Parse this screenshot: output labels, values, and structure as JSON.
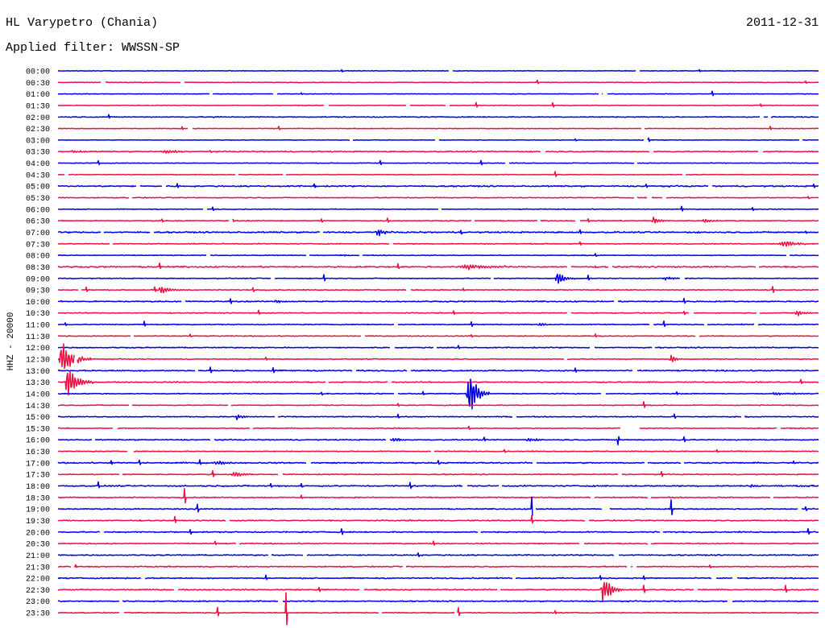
{
  "chart_data": {
    "type": "line",
    "title": "HL Varypetro (Chania)",
    "date": "2011-12-31",
    "subtitle": "Applied filter: WWSSN-SP",
    "ylabel": "HHZ - 20000",
    "row_minutes": 30,
    "colors": [
      "#0000ee",
      "#ee1144"
    ],
    "rows": [
      {
        "label": "00:00",
        "noise": 700,
        "events": [],
        "spikes": [
          {
            "t": 11.2,
            "amp": 2500
          },
          {
            "t": 25.3,
            "amp": 2000
          }
        ]
      },
      {
        "label": "00:30",
        "noise": 700,
        "events": [],
        "spikes": [
          {
            "t": 4.9,
            "amp": 3500
          },
          {
            "t": 18.9,
            "amp": 3500
          },
          {
            "t": 29.5,
            "amp": 2500
          }
        ]
      },
      {
        "label": "01:00",
        "noise": 700,
        "events": [],
        "spikes": [
          {
            "t": 9.6,
            "amp": 2000
          },
          {
            "t": 25.8,
            "amp": 4500
          }
        ]
      },
      {
        "label": "01:30",
        "noise": 700,
        "events": [],
        "spikes": [
          {
            "t": 16.5,
            "amp": 4500
          },
          {
            "t": 19.5,
            "amp": 4500
          },
          {
            "t": 27.7,
            "amp": 2500
          }
        ]
      },
      {
        "label": "02:00",
        "noise": 1100,
        "events": [
          {
            "t": 6.0,
            "dur": 1.3,
            "amp": 1500
          }
        ],
        "spikes": [
          {
            "t": 2.0,
            "amp": 3500
          }
        ]
      },
      {
        "label": "02:30",
        "noise": 800,
        "events": [],
        "spikes": [
          {
            "t": 4.9,
            "amp": 3000
          },
          {
            "t": 8.7,
            "amp": 3500
          },
          {
            "t": 28.1,
            "amp": 3500
          }
        ]
      },
      {
        "label": "03:00",
        "noise": 700,
        "events": [],
        "spikes": [
          {
            "t": 20.4,
            "amp": 2000
          },
          {
            "t": 23.3,
            "amp": 3500
          }
        ]
      },
      {
        "label": "03:30",
        "noise": 1200,
        "events": [
          {
            "t": 0.4,
            "dur": 1.5,
            "amp": 2000
          },
          {
            "t": 4.1,
            "dur": 1.1,
            "amp": 4500
          }
        ],
        "spikes": [
          {
            "t": 6.0,
            "amp": 2500
          }
        ]
      },
      {
        "label": "04:00",
        "noise": 800,
        "events": [],
        "spikes": [
          {
            "t": 1.6,
            "amp": 4000
          },
          {
            "t": 12.7,
            "amp": 4000
          },
          {
            "t": 16.7,
            "amp": 4500
          }
        ]
      },
      {
        "label": "04:30",
        "noise": 700,
        "events": [],
        "spikes": [
          {
            "t": 19.6,
            "amp": 5500
          }
        ]
      },
      {
        "label": "05:00",
        "noise": 1500,
        "events": [],
        "spikes": [
          {
            "t": 4.7,
            "amp": 3500
          },
          {
            "t": 10.1,
            "amp": 3500
          },
          {
            "t": 23.2,
            "amp": 3500
          },
          {
            "t": 29.8,
            "amp": 3000
          }
        ]
      },
      {
        "label": "05:30",
        "noise": 1000,
        "events": [],
        "spikes": [
          {
            "t": 29.6,
            "amp": 2500
          }
        ]
      },
      {
        "label": "06:00",
        "noise": 900,
        "events": [],
        "spikes": [
          {
            "t": 6.1,
            "amp": 3500
          },
          {
            "t": 24.6,
            "amp": 4500
          },
          {
            "t": 27.4,
            "amp": 3000
          }
        ]
      },
      {
        "label": "06:30",
        "noise": 1000,
        "events": [
          {
            "t": 23.4,
            "dur": 0.7,
            "amp": 7000
          },
          {
            "t": 25.4,
            "dur": 0.8,
            "amp": 4500
          }
        ],
        "spikes": [
          {
            "t": 4.1,
            "amp": 3000
          },
          {
            "t": 6.9,
            "amp": 3000
          },
          {
            "t": 10.4,
            "amp": 3000
          },
          {
            "t": 13.0,
            "amp": 4000
          },
          {
            "t": 20.9,
            "amp": 3000
          }
        ]
      },
      {
        "label": "07:00",
        "noise": 1600,
        "events": [
          {
            "t": 12.5,
            "dur": 0.8,
            "amp": 8000
          }
        ],
        "spikes": [
          {
            "t": 15.9,
            "amp": 4000
          },
          {
            "t": 20.6,
            "amp": 4000
          },
          {
            "t": 29.5,
            "amp": 3000
          }
        ]
      },
      {
        "label": "07:30",
        "noise": 1000,
        "events": [
          {
            "t": 28.4,
            "dur": 1.6,
            "amp": 5500
          }
        ],
        "spikes": [
          {
            "t": 13.1,
            "amp": 3500
          },
          {
            "t": 20.6,
            "amp": 3000
          }
        ]
      },
      {
        "label": "08:00",
        "noise": 900,
        "events": [
          {
            "t": 11.1,
            "dur": 0.4,
            "amp": 2500
          }
        ],
        "spikes": [
          {
            "t": 21.2,
            "amp": 3000
          }
        ]
      },
      {
        "label": "08:30",
        "noise": 1600,
        "events": [
          {
            "t": 15.8,
            "dur": 2.7,
            "amp": 5000
          }
        ],
        "spikes": [
          {
            "t": 4.0,
            "amp": 6000
          },
          {
            "t": 13.4,
            "amp": 6000
          }
        ]
      },
      {
        "label": "09:00",
        "noise": 1000,
        "events": [
          {
            "t": 19.6,
            "dur": 0.8,
            "amp": 14000
          },
          {
            "t": 23.8,
            "dur": 1.3,
            "amp": 3500
          }
        ],
        "spikes": [
          {
            "t": 10.5,
            "amp": 6500
          },
          {
            "t": 20.9,
            "amp": 5000
          }
        ]
      },
      {
        "label": "09:30",
        "noise": 1000,
        "events": [
          {
            "t": 3.9,
            "dur": 1.3,
            "amp": 6500
          }
        ],
        "spikes": [
          {
            "t": 1.1,
            "amp": 5500
          },
          {
            "t": 3.8,
            "amp": 5000
          },
          {
            "t": 7.7,
            "amp": 4000
          },
          {
            "t": 16.0,
            "amp": 3000
          },
          {
            "t": 28.2,
            "amp": 6500
          }
        ]
      },
      {
        "label": "10:00",
        "noise": 1300,
        "events": [
          {
            "t": 8.5,
            "dur": 0.8,
            "amp": 3500
          }
        ],
        "spikes": [
          {
            "t": 6.8,
            "amp": 5000
          },
          {
            "t": 24.7,
            "amp": 5000
          }
        ]
      },
      {
        "label": "10:30",
        "noise": 1000,
        "events": [
          {
            "t": 29.0,
            "dur": 1.0,
            "amp": 5500
          }
        ],
        "spikes": [
          {
            "t": 7.9,
            "amp": 4000
          },
          {
            "t": 15.6,
            "amp": 3500
          },
          {
            "t": 24.7,
            "amp": 3500
          }
        ]
      },
      {
        "label": "11:00",
        "noise": 1100,
        "events": [
          {
            "t": 18.9,
            "dur": 0.8,
            "amp": 3500
          }
        ],
        "spikes": [
          {
            "t": 0.3,
            "amp": 3500
          },
          {
            "t": 3.4,
            "amp": 5000
          },
          {
            "t": 16.3,
            "amp": 5000
          },
          {
            "t": 23.9,
            "amp": 5000
          }
        ]
      },
      {
        "label": "11:30",
        "noise": 1000,
        "events": [],
        "spikes": [
          {
            "t": 5.2,
            "amp": 3000
          },
          {
            "t": 16.3,
            "amp": 3000
          },
          {
            "t": 21.2,
            "amp": 3500
          }
        ]
      },
      {
        "label": "12:00",
        "noise": 1200,
        "events": [],
        "spikes": [
          {
            "t": 15.8,
            "amp": 3500
          }
        ]
      },
      {
        "label": "12:30",
        "noise": 1000,
        "events": [
          {
            "t": 0.0,
            "dur": 1.3,
            "amp": 32000
          },
          {
            "t": 24.1,
            "dur": 0.5,
            "amp": 10000
          }
        ],
        "spikes": [
          {
            "t": 8.2,
            "amp": 3500
          }
        ]
      },
      {
        "label": "13:00",
        "noise": 1400,
        "events": [],
        "spikes": [
          {
            "t": 6.0,
            "amp": 6000
          },
          {
            "t": 8.5,
            "amp": 5000
          },
          {
            "t": 20.4,
            "amp": 4500
          }
        ]
      },
      {
        "label": "13:30",
        "noise": 1300,
        "events": [
          {
            "t": 0.25,
            "dur": 1.1,
            "amp": 30000
          }
        ],
        "spikes": [
          {
            "t": 29.3,
            "amp": 4000
          }
        ]
      },
      {
        "label": "14:00",
        "noise": 1100,
        "events": [
          {
            "t": 16.1,
            "dur": 0.9,
            "amp": 45000
          },
          {
            "t": 28.1,
            "dur": 1.9,
            "amp": 2500
          }
        ],
        "spikes": [
          {
            "t": 10.4,
            "amp": 3000
          },
          {
            "t": 14.4,
            "amp": 3500
          },
          {
            "t": 24.4,
            "amp": 3000
          }
        ]
      },
      {
        "label": "14:30",
        "noise": 1000,
        "events": [],
        "spikes": [
          {
            "t": 13.4,
            "amp": 2500
          },
          {
            "t": 23.1,
            "amp": 6000
          }
        ]
      },
      {
        "label": "15:00",
        "noise": 1100,
        "events": [
          {
            "t": 7.0,
            "dur": 0.6,
            "amp": 8500
          }
        ],
        "spikes": [
          {
            "t": 13.4,
            "amp": 4000
          },
          {
            "t": 24.3,
            "amp": 4500
          }
        ]
      },
      {
        "label": "15:30",
        "noise": 1100,
        "events": [],
        "gaps": [
          {
            "t": 22.2,
            "dur": 0.7
          }
        ],
        "spikes": [
          {
            "t": 16.2,
            "amp": 3500
          }
        ]
      },
      {
        "label": "16:00",
        "noise": 1200,
        "events": [
          {
            "t": 13.1,
            "dur": 1.0,
            "amp": 4000
          },
          {
            "t": 18.4,
            "dur": 1.0,
            "amp": 4000
          }
        ],
        "spikes": [
          {
            "t": 16.8,
            "amp": 4000
          },
          {
            "t": 22.1,
            "amp": -9000
          },
          {
            "t": 24.7,
            "amp": 5000
          }
        ]
      },
      {
        "label": "16:30",
        "noise": 1000,
        "events": [],
        "spikes": [
          {
            "t": 17.6,
            "amp": 3500
          },
          {
            "t": 26.0,
            "amp": 3000
          }
        ]
      },
      {
        "label": "17:00",
        "noise": 1500,
        "events": [
          {
            "t": 6.1,
            "dur": 1.0,
            "amp": 4000
          }
        ],
        "spikes": [
          {
            "t": 2.1,
            "amp": 4000
          },
          {
            "t": 3.2,
            "amp": 4500
          },
          {
            "t": 5.6,
            "amp": 5500
          },
          {
            "t": 15.0,
            "amp": 4000
          },
          {
            "t": 29.0,
            "amp": 3000
          }
        ]
      },
      {
        "label": "17:30",
        "noise": 1100,
        "events": [
          {
            "t": 6.8,
            "dur": 1.2,
            "amp": 6000
          }
        ],
        "spikes": [
          {
            "t": 6.1,
            "amp": 6500
          },
          {
            "t": 23.8,
            "amp": 6000
          }
        ]
      },
      {
        "label": "18:00",
        "noise": 1500,
        "events": [
          {
            "t": 27.3,
            "dur": 0.4,
            "amp": 3000
          }
        ],
        "spikes": [
          {
            "t": 1.6,
            "amp": 6500
          },
          {
            "t": 8.4,
            "amp": 4000
          },
          {
            "t": 9.6,
            "amp": 4000
          },
          {
            "t": 13.9,
            "amp": 6500
          }
        ]
      },
      {
        "label": "18:30",
        "noise": 1200,
        "events": [],
        "spikes": [
          {
            "t": 5.0,
            "amp": 16000
          },
          {
            "t": 9.6,
            "amp": 4000
          }
        ]
      },
      {
        "label": "19:00",
        "noise": 1200,
        "events": [],
        "spikes": [
          {
            "t": 5.5,
            "amp": 9000
          },
          {
            "t": 18.7,
            "amp": 20000
          },
          {
            "t": 24.2,
            "amp": 16000
          },
          {
            "t": 29.5,
            "amp": 4000
          }
        ]
      },
      {
        "label": "19:30",
        "noise": 1200,
        "events": [],
        "spikes": [
          {
            "t": 4.6,
            "amp": 7000
          },
          {
            "t": 18.7,
            "amp": 8000
          }
        ]
      },
      {
        "label": "20:00",
        "noise": 1400,
        "events": [],
        "spikes": [
          {
            "t": 5.2,
            "amp": 4500
          },
          {
            "t": 11.2,
            "amp": 6500
          },
          {
            "t": 29.6,
            "amp": 6000
          }
        ]
      },
      {
        "label": "20:30",
        "noise": 1200,
        "events": [],
        "spikes": [
          {
            "t": 6.2,
            "amp": 3500
          },
          {
            "t": 14.8,
            "amp": 4500
          }
        ]
      },
      {
        "label": "21:00",
        "noise": 1300,
        "events": [],
        "spikes": [
          {
            "t": 14.2,
            "amp": 4500
          }
        ]
      },
      {
        "label": "21:30",
        "noise": 1200,
        "events": [],
        "spikes": [
          {
            "t": 0.7,
            "amp": 3000
          },
          {
            "t": 25.7,
            "amp": 2500
          }
        ]
      },
      {
        "label": "22:00",
        "noise": 1300,
        "events": [],
        "spikes": [
          {
            "t": 8.2,
            "amp": 5000
          },
          {
            "t": 21.4,
            "amp": 4000
          },
          {
            "t": 23.1,
            "amp": 4000
          }
        ]
      },
      {
        "label": "22:30",
        "noise": 1300,
        "events": [
          {
            "t": 21.4,
            "dur": 0.9,
            "amp": 28000
          }
        ],
        "spikes": [
          {
            "t": 10.3,
            "amp": 4500
          },
          {
            "t": 23.1,
            "amp": 8000
          },
          {
            "t": 28.7,
            "amp": 7500
          }
        ]
      },
      {
        "label": "23:00",
        "noise": 1300,
        "events": [],
        "spikes": [
          {
            "t": 26.5,
            "amp": 5000
          }
        ]
      },
      {
        "label": "23:30",
        "noise": 1100,
        "events": [],
        "spikes": [
          {
            "t": 6.3,
            "amp": 9000
          },
          {
            "t": 9.0,
            "amp": 35000
          },
          {
            "t": 15.8,
            "amp": 9000
          },
          {
            "t": 19.6,
            "amp": 4000
          }
        ]
      }
    ]
  }
}
